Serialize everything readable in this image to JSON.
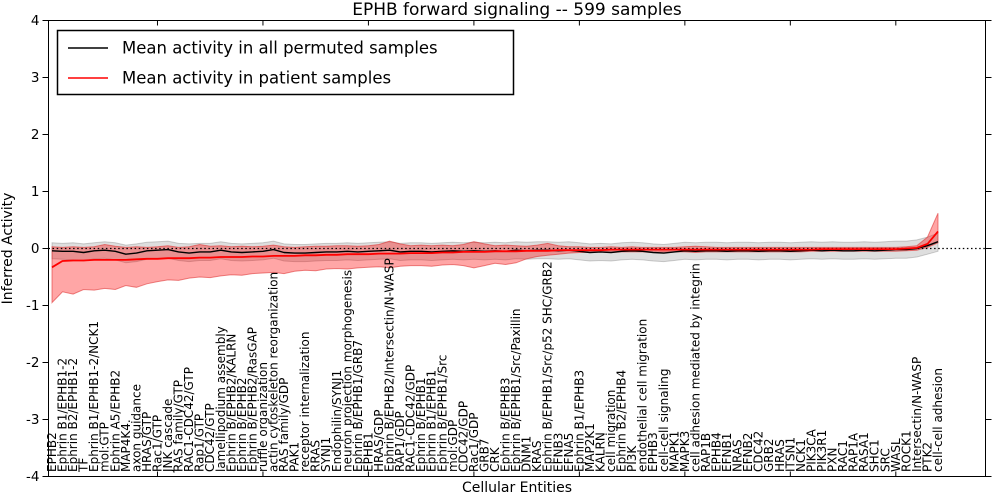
{
  "figure": {
    "title": "EPHB forward signaling -- 599 samples",
    "xlabel": "Cellular Entities",
    "ylabel": "Inferred Activity"
  },
  "chart_data": {
    "type": "line",
    "title": "EPHB forward signaling -- 599 samples",
    "xlabel": "Cellular Entities",
    "ylabel": "Inferred Activity",
    "ylim": [
      -4,
      4
    ],
    "yticks": [
      -4,
      -3,
      -2,
      -1,
      0,
      1,
      2,
      3,
      4
    ],
    "grid": false,
    "zero_line_style": "dotted",
    "legend_position": "upper left",
    "x_tick_label_rotation": 90,
    "categories": [
      "EPHB2",
      "Ephrin B1/EPHB1-2",
      "Ephrin B2/EPHB1-2",
      "TF",
      "Ephrin B1/EPHB1-2/NCK1",
      "mol:GTP",
      "Ephrin A5/EPHB2",
      "MAP4K4.",
      "axon guidance",
      "HRAS/GTP",
      "Rac1/GTP",
      "JNK cascade",
      "RAS family/GTP",
      "RAC1-CDC42/GTP",
      "Rap1/GTP",
      "CDC42/GTP",
      "lamellipodium assembly",
      "Ephrin B/EPHB2/KALRN",
      "Ephrin B/EPHB2",
      "Ephrin B/EPHB2/RasGAP",
      "ruffle organization",
      "actin cytoskeleton reorganization",
      "RAS family/GDP",
      "PAK1",
      "receptor internalization",
      "RRAS",
      "SYNJ1",
      "Endophilin/SYNJ1",
      "neuron projection morphogenesis",
      "Ephrin B/EPHB1/GRB7",
      "EPHB1",
      "HRAS/GDP",
      "Ephrin B/EPHB2/Intersectin/N-WASP",
      "RAP1/GDP",
      "RAC1-CDC42/GDP",
      "Ephrin B/EPHB1",
      "Ephrin B1/EPHB1",
      "Ephrin B/EPHB1/Src",
      "mol:GDP",
      "CDC42/GDP",
      "Rac1/GDP",
      "GRB7",
      "CRK",
      "Ephrin B/EPHB3",
      "Ephrin B/EPHB1/Src/Paxillin",
      "DNM1",
      "KRAS",
      "Ephrin B/EPHB1/Src/p52 SHC/GRB2",
      "EFNB3",
      "EFNA5",
      "Ephrin B1/EPHB3",
      "MAP2K1",
      "KALRN",
      "cell migration",
      "Ephrin B2/EPHB4",
      "PI3K",
      "endothelial cell migration",
      "EPHB3",
      "cell-cell signaling",
      "MAPK1",
      "MAPK3",
      "cell adhesion mediated by integrin",
      "RAP1B",
      "EPHB4",
      "EFNB1",
      "NRAS",
      "EFNB2",
      "CDC42",
      "GRB2",
      "HRAS",
      "ITSN1",
      "NCK1",
      "PIK3CA",
      "PIK3R1",
      "PXN",
      "RAC1",
      "RAP1A",
      "RASA1",
      "SHC1",
      "SRC",
      "WASL",
      "ROCK1",
      "Intersectin/N-WASP",
      "PTK2",
      "cell-cell adhesion"
    ],
    "series": [
      {
        "name": "Mean activity in all permuted samples",
        "color": "#000000",
        "band_fill": "rgba(0,0,0,0.13)",
        "band_edge": "rgba(0,0,0,0.18)",
        "values": [
          -0.04,
          -0.05,
          -0.05,
          -0.07,
          -0.04,
          -0.03,
          -0.05,
          -0.1,
          -0.08,
          -0.04,
          -0.03,
          -0.02,
          -0.06,
          -0.08,
          -0.06,
          -0.06,
          -0.03,
          -0.06,
          -0.07,
          -0.06,
          -0.05,
          -0.02,
          -0.07,
          -0.08,
          -0.08,
          -0.07,
          -0.06,
          -0.06,
          -0.05,
          -0.06,
          -0.05,
          -0.04,
          -0.03,
          -0.06,
          -0.05,
          -0.05,
          -0.06,
          -0.05,
          -0.04,
          -0.05,
          -0.04,
          -0.05,
          -0.04,
          -0.05,
          -0.03,
          -0.04,
          -0.03,
          -0.03,
          -0.04,
          -0.03,
          -0.05,
          -0.07,
          -0.06,
          -0.07,
          -0.05,
          -0.04,
          -0.05,
          -0.07,
          -0.08,
          -0.06,
          -0.04,
          -0.05,
          -0.04,
          -0.04,
          -0.05,
          -0.04,
          -0.04,
          -0.05,
          -0.04,
          -0.04,
          -0.05,
          -0.04,
          -0.03,
          -0.04,
          -0.03,
          -0.04,
          -0.04,
          -0.03,
          -0.04,
          -0.03,
          -0.02,
          -0.02,
          0.0,
          0.05,
          0.12
        ],
        "band_upper": [
          0.1,
          0.09,
          0.1,
          0.08,
          0.1,
          0.12,
          0.1,
          0.06,
          0.08,
          0.11,
          0.12,
          0.13,
          0.09,
          0.08,
          0.09,
          0.09,
          0.12,
          0.09,
          0.08,
          0.09,
          0.1,
          0.13,
          0.08,
          0.07,
          0.07,
          0.08,
          0.09,
          0.09,
          0.1,
          0.09,
          0.1,
          0.11,
          0.12,
          0.09,
          0.1,
          0.1,
          0.09,
          0.1,
          0.11,
          0.1,
          0.11,
          0.1,
          0.11,
          0.1,
          0.12,
          0.11,
          0.12,
          0.12,
          0.11,
          0.12,
          0.1,
          0.08,
          0.09,
          0.08,
          0.1,
          0.11,
          0.1,
          0.08,
          0.07,
          0.09,
          0.11,
          0.1,
          0.11,
          0.11,
          0.1,
          0.11,
          0.11,
          0.1,
          0.11,
          0.11,
          0.1,
          0.11,
          0.12,
          0.11,
          0.12,
          0.11,
          0.11,
          0.12,
          0.11,
          0.12,
          0.13,
          0.13,
          0.15,
          0.2,
          0.27
        ],
        "band_lower": [
          -0.18,
          -0.19,
          -0.2,
          -0.22,
          -0.18,
          -0.17,
          -0.2,
          -0.25,
          -0.23,
          -0.19,
          -0.18,
          -0.17,
          -0.21,
          -0.23,
          -0.21,
          -0.21,
          -0.18,
          -0.21,
          -0.22,
          -0.21,
          -0.2,
          -0.17,
          -0.22,
          -0.23,
          -0.23,
          -0.22,
          -0.21,
          -0.21,
          -0.2,
          -0.21,
          -0.2,
          -0.19,
          -0.18,
          -0.21,
          -0.2,
          -0.2,
          -0.21,
          -0.2,
          -0.19,
          -0.2,
          -0.19,
          -0.2,
          -0.19,
          -0.2,
          -0.18,
          -0.19,
          -0.18,
          -0.18,
          -0.19,
          -0.18,
          -0.2,
          -0.22,
          -0.21,
          -0.22,
          -0.2,
          -0.19,
          -0.2,
          -0.22,
          -0.23,
          -0.21,
          -0.19,
          -0.2,
          -0.19,
          -0.19,
          -0.2,
          -0.19,
          -0.19,
          -0.2,
          -0.19,
          -0.19,
          -0.2,
          -0.19,
          -0.18,
          -0.19,
          -0.18,
          -0.19,
          -0.19,
          -0.18,
          -0.19,
          -0.18,
          -0.17,
          -0.17,
          -0.15,
          -0.1,
          -0.05
        ]
      },
      {
        "name": "Mean activity in patient samples",
        "color": "#ff0000",
        "band_fill": "rgba(255,0,0,0.35)",
        "band_edge": "rgba(220,40,40,0.55)",
        "values": [
          -0.33,
          -0.22,
          -0.21,
          -0.21,
          -0.2,
          -0.2,
          -0.2,
          -0.2,
          -0.19,
          -0.18,
          -0.18,
          -0.17,
          -0.17,
          -0.17,
          -0.16,
          -0.16,
          -0.15,
          -0.15,
          -0.15,
          -0.14,
          -0.14,
          -0.13,
          -0.13,
          -0.13,
          -0.12,
          -0.12,
          -0.11,
          -0.11,
          -0.1,
          -0.1,
          -0.1,
          -0.09,
          -0.09,
          -0.09,
          -0.08,
          -0.08,
          -0.08,
          -0.07,
          -0.07,
          -0.06,
          -0.06,
          -0.06,
          -0.05,
          -0.05,
          -0.05,
          -0.04,
          -0.04,
          -0.04,
          -0.03,
          -0.03,
          -0.03,
          -0.03,
          -0.03,
          -0.02,
          -0.02,
          -0.02,
          -0.02,
          -0.02,
          -0.02,
          -0.02,
          -0.02,
          -0.02,
          -0.02,
          -0.02,
          -0.02,
          -0.02,
          -0.02,
          -0.02,
          -0.02,
          -0.02,
          -0.02,
          -0.02,
          -0.02,
          -0.01,
          -0.01,
          -0.01,
          -0.01,
          -0.01,
          -0.01,
          -0.01,
          -0.01,
          0.0,
          0.01,
          0.08,
          0.3
        ],
        "band_upper": [
          0.03,
          0.02,
          0.03,
          0.02,
          0.03,
          0.07,
          0.04,
          0.02,
          0.03,
          0.02,
          0.03,
          0.05,
          0.02,
          0.03,
          0.07,
          0.04,
          0.05,
          0.03,
          0.04,
          0.03,
          0.04,
          0.06,
          0.03,
          0.02,
          0.03,
          0.04,
          0.04,
          0.05,
          0.05,
          0.04,
          0.05,
          0.07,
          0.13,
          0.08,
          0.05,
          0.06,
          0.05,
          0.06,
          0.05,
          0.07,
          0.12,
          0.08,
          0.05,
          0.06,
          0.05,
          0.04,
          0.06,
          0.09,
          0.05,
          0.03,
          0.03,
          0.02,
          0.02,
          0.03,
          0.02,
          0.03,
          0.02,
          0.02,
          0.02,
          0.02,
          0.03,
          0.04,
          0.03,
          0.02,
          0.02,
          0.02,
          0.02,
          0.02,
          0.02,
          0.02,
          0.02,
          0.02,
          0.02,
          0.02,
          0.02,
          0.02,
          0.02,
          0.02,
          0.02,
          0.02,
          0.02,
          0.03,
          0.05,
          0.2,
          0.62
        ],
        "band_lower": [
          -0.95,
          -0.76,
          -0.8,
          -0.72,
          -0.73,
          -0.7,
          -0.72,
          -0.65,
          -0.68,
          -0.62,
          -0.58,
          -0.55,
          -0.56,
          -0.52,
          -0.5,
          -0.51,
          -0.48,
          -0.46,
          -0.47,
          -0.44,
          -0.43,
          -0.42,
          -0.44,
          -0.4,
          -0.38,
          -0.39,
          -0.36,
          -0.35,
          -0.36,
          -0.34,
          -0.33,
          -0.32,
          -0.34,
          -0.31,
          -0.3,
          -0.3,
          -0.31,
          -0.29,
          -0.28,
          -0.3,
          -0.34,
          -0.3,
          -0.26,
          -0.28,
          -0.25,
          -0.18,
          -0.14,
          -0.12,
          -0.1,
          -0.08,
          -0.07,
          -0.07,
          -0.06,
          -0.07,
          -0.06,
          -0.06,
          -0.06,
          -0.07,
          -0.06,
          -0.06,
          -0.06,
          -0.07,
          -0.06,
          -0.06,
          -0.06,
          -0.06,
          -0.06,
          -0.06,
          -0.06,
          -0.06,
          -0.06,
          -0.06,
          -0.05,
          -0.05,
          -0.05,
          -0.05,
          -0.05,
          -0.05,
          -0.05,
          -0.05,
          -0.05,
          -0.04,
          -0.03,
          0.02,
          0.1
        ]
      }
    ]
  }
}
